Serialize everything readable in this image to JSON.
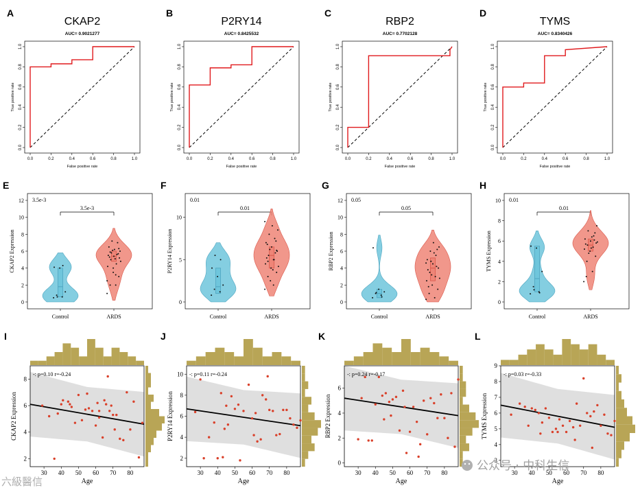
{
  "figure": {
    "panels": {
      "roc": [
        {
          "letter": "A",
          "title": "CKAP2",
          "auc": "AUC= 0.9021277"
        },
        {
          "letter": "B",
          "title": "P2RY14",
          "auc": "AUC= 0.8425532"
        },
        {
          "letter": "C",
          "title": "RBP2",
          "auc": "AUC= 0.7702128"
        },
        {
          "letter": "D",
          "title": "TYMS",
          "auc": "AUC= 0.8340426"
        }
      ],
      "violin": [
        {
          "letter": "E",
          "gene": "CKAP2",
          "p": "3.5e-3",
          "ylabel": "CKAP2 Expression"
        },
        {
          "letter": "F",
          "gene": "P2RY14",
          "p": "0.01",
          "ylabel": "P2RY14 Expression"
        },
        {
          "letter": "G",
          "gene": "RBP2",
          "p": "0.05",
          "ylabel": "RBP2 Expression"
        },
        {
          "letter": "H",
          "gene": "TYMS",
          "p": "0.01",
          "ylabel": "TYMS Expression"
        }
      ],
      "scatter": [
        {
          "letter": "I",
          "gene": "CKAP2",
          "stat": "-: p=0.10 r=-0.24",
          "ylabel": "CKAP2 Expression"
        },
        {
          "letter": "J",
          "gene": "P2RY14",
          "stat": "-: p=0.11 r=-0.24",
          "ylabel": "P2RY14 Expression"
        },
        {
          "letter": "K",
          "gene": "RBP2",
          "stat": "-: p=0.24 r=-0.17",
          "ylabel": "RBP2 Expression"
        },
        {
          "letter": "L",
          "gene": "TYMS",
          "stat": "-: p=0.03 r=-0.33",
          "ylabel": "TYMS Expression"
        }
      ]
    },
    "roc_axis": {
      "xlabel": "False positive rate",
      "ylabel": "True positive rate",
      "ticks": [
        "0.0",
        "0.2",
        "0.4",
        "0.6",
        "0.8",
        "1.0"
      ]
    },
    "violin_axis": {
      "groups": [
        "Control",
        "ARDS"
      ]
    },
    "scatter_axis": {
      "xlabel": "Age",
      "xticks": [
        "30",
        "40",
        "50",
        "60",
        "70",
        "80"
      ]
    },
    "watermark": {
      "left": "六級醫信",
      "right": "公众号 · 中科生信"
    },
    "colors": {
      "roc": "#e0191c",
      "control": "#6fc6dc",
      "ards": "#ee8577",
      "point": "#d9402a",
      "hist": "#b8a556",
      "band": "#dcdcdc"
    }
  },
  "chart_data": [
    {
      "type": "line",
      "title": "CKAP2",
      "subtitle": "AUC= 0.9021277",
      "xlabel": "False positive rate",
      "ylabel": "True positive rate",
      "xlim": [
        0,
        1
      ],
      "ylim": [
        0,
        1
      ],
      "x": [
        0,
        0,
        0,
        0.2,
        0.2,
        0.4,
        0.4,
        0.6,
        0.6,
        0.8,
        1
      ],
      "y": [
        0,
        0.8,
        0.8,
        0.8,
        0.83,
        0.83,
        0.87,
        0.87,
        1,
        1,
        1
      ]
    },
    {
      "type": "line",
      "title": "P2RY14",
      "subtitle": "AUC= 0.8425532",
      "xlabel": "False positive rate",
      "ylabel": "True positive rate",
      "xlim": [
        0,
        1
      ],
      "ylim": [
        0,
        1
      ],
      "x": [
        0,
        0,
        0.2,
        0.2,
        0.4,
        0.4,
        0.6,
        0.6,
        1
      ],
      "y": [
        0,
        0.62,
        0.62,
        0.79,
        0.79,
        0.82,
        0.82,
        1,
        1
      ]
    },
    {
      "type": "line",
      "title": "RBP2",
      "subtitle": "AUC= 0.7702128",
      "xlabel": "False positive rate",
      "ylabel": "True positive rate",
      "xlim": [
        0,
        1
      ],
      "ylim": [
        0,
        1
      ],
      "x": [
        0,
        0,
        0.2,
        0.2,
        0.98,
        0.98,
        1
      ],
      "y": [
        0,
        0.2,
        0.2,
        0.91,
        0.91,
        0.97,
        1
      ]
    },
    {
      "type": "line",
      "title": "TYMS",
      "subtitle": "AUC= 0.8340426",
      "xlabel": "False positive rate",
      "ylabel": "True positive rate",
      "xlim": [
        0,
        1
      ],
      "ylim": [
        0,
        1
      ],
      "x": [
        0,
        0,
        0.2,
        0.2,
        0.4,
        0.4,
        0.6,
        0.6,
        1
      ],
      "y": [
        0,
        0.6,
        0.6,
        0.64,
        0.64,
        0.91,
        0.91,
        0.97,
        1
      ]
    },
    {
      "type": "violin",
      "title": "CKAP2 Expression",
      "p": "3.5e-3",
      "categories": [
        "Control",
        "ARDS"
      ],
      "ylim": [
        0,
        12
      ],
      "yticks": [
        0,
        2,
        4,
        6,
        8,
        10,
        12
      ],
      "control": {
        "median": 1.8,
        "q1": 0.6,
        "q3": 4.0,
        "points": [
          0.5,
          0.6,
          0.8,
          1.2,
          4.0,
          4.1,
          4.3,
          0.6
        ]
      },
      "ards": {
        "median": 5.4,
        "q1": 4.8,
        "q3": 6.0,
        "points": [
          1.0,
          2.0,
          2.0,
          3.0,
          3.5,
          4.2,
          4.5,
          5.0,
          5.2,
          5.4,
          5.5,
          5.6,
          5.8,
          6.0,
          6.2,
          6.5,
          7.0,
          7.2,
          4.8,
          5.1,
          5.3,
          5.7,
          6.1,
          2.5,
          3.2,
          5.9,
          6.3,
          4.0
        ]
      }
    },
    {
      "type": "violin",
      "title": "P2RY14 Expression",
      "p": "0.01",
      "categories": [
        "Control",
        "ARDS"
      ],
      "ylim": [
        0,
        12
      ],
      "yticks": [
        0,
        5,
        10
      ],
      "control": {
        "median": 1.8,
        "q1": 1.0,
        "q3": 4.0,
        "points": [
          0.8,
          1.2,
          1.5,
          2.0,
          3.0,
          4.0,
          5.0,
          5.5
        ]
      },
      "ards": {
        "median": 5.5,
        "q1": 4.0,
        "q3": 6.5,
        "points": [
          1.5,
          2.0,
          3.0,
          3.5,
          4.0,
          4.5,
          5.0,
          5.5,
          6.0,
          6.5,
          7.0,
          7.5,
          8.0,
          8.5,
          9.0,
          5.2,
          5.8,
          6.2,
          4.2,
          3.8,
          6.8,
          7.2,
          2.5,
          9.5,
          5.0,
          4.8,
          6.1
        ]
      }
    },
    {
      "type": "violin",
      "title": "RBP2 Expression",
      "p": "0.05",
      "categories": [
        "Control",
        "ARDS"
      ],
      "ylim": [
        0,
        12
      ],
      "yticks": [
        0,
        2,
        4,
        6,
        8,
        10,
        12
      ],
      "control": {
        "median": 1.0,
        "q1": 0.5,
        "q3": 1.5,
        "points": [
          0.5,
          0.8,
          1.0,
          1.2,
          1.5,
          6.4,
          0.6,
          1.1
        ]
      },
      "ards": {
        "median": 4.0,
        "q1": 2.5,
        "q3": 5.2,
        "points": [
          0.3,
          0.5,
          1.0,
          1.5,
          2.0,
          2.5,
          3.0,
          3.5,
          4.0,
          4.5,
          5.0,
          5.5,
          6.0,
          6.5,
          7.0,
          3.8,
          4.2,
          4.8,
          2.8,
          5.8,
          1.8,
          6.2,
          3.2,
          4.6
        ]
      }
    },
    {
      "type": "violin",
      "title": "TYMS Expression",
      "p": "0.01",
      "categories": [
        "Control",
        "ARDS"
      ],
      "ylim": [
        0,
        10
      ],
      "yticks": [
        0,
        2,
        4,
        6,
        8,
        10
      ],
      "control": {
        "median": 2.3,
        "q1": 1.0,
        "q3": 5.5,
        "points": [
          0.8,
          1.0,
          1.5,
          3.0,
          5.3,
          5.5,
          0.9,
          1.2
        ]
      },
      "ards": {
        "median": 5.6,
        "q1": 5.0,
        "q3": 6.2,
        "points": [
          2.0,
          3.0,
          4.0,
          4.5,
          5.0,
          5.2,
          5.4,
          5.6,
          5.8,
          6.0,
          6.2,
          6.5,
          7.0,
          7.5,
          5.3,
          5.7,
          6.1,
          4.8,
          5.9,
          6.4,
          2.5,
          6.8
        ]
      }
    },
    {
      "type": "scatter",
      "title": "CKAP2 Expression",
      "stat": "-: p=0.10 r=-0.24",
      "xlabel": "Age",
      "xlim": [
        22,
        88
      ],
      "ylim": [
        1.4,
        9.0
      ],
      "yticks": [
        2,
        4,
        6,
        8
      ],
      "x": [
        36,
        38,
        40,
        41,
        44,
        45,
        46,
        48,
        50,
        52,
        54,
        55,
        56,
        58,
        60,
        61,
        62,
        62,
        64,
        65,
        66,
        67,
        68,
        69,
        70,
        71,
        72,
        74,
        76,
        78,
        80,
        82,
        85,
        87,
        29,
        33
      ],
      "y": [
        2.0,
        5.4,
        6.1,
        6.4,
        6.3,
        6.1,
        5.9,
        4.7,
        6.8,
        4.9,
        5.7,
        6.9,
        5.8,
        5.6,
        4.5,
        6.2,
        5.1,
        5.6,
        3.6,
        6.4,
        6.1,
        8.2,
        5.6,
        6.0,
        5.3,
        4.2,
        5.3,
        3.5,
        3.4,
        7.0,
        4.2,
        6.3,
        2.1,
        4.7,
        6.0,
        5.2
      ],
      "fit": {
        "x": [
          22,
          88
        ],
        "y": [
          6.1,
          4.6
        ]
      },
      "hist_x": [
        1,
        1,
        2,
        3,
        5,
        4,
        2,
        6,
        4,
        2,
        4,
        3,
        2,
        1
      ],
      "hist_y": [
        1,
        2,
        2,
        1,
        3,
        2,
        5,
        7,
        6,
        4,
        3,
        2,
        1,
        1
      ]
    },
    {
      "type": "scatter",
      "title": "P2RY14 Expression",
      "stat": "-: p=0.11 r=-0.24",
      "xlabel": "Age",
      "xlim": [
        22,
        88
      ],
      "ylim": [
        1.2,
        10.8
      ],
      "yticks": [
        2,
        4,
        6,
        8,
        10
      ],
      "x": [
        27,
        30,
        32,
        35,
        38,
        40,
        42,
        44,
        45,
        46,
        48,
        50,
        52,
        55,
        58,
        60,
        62,
        63,
        65,
        66,
        68,
        70,
        72,
        74,
        76,
        78,
        80,
        82,
        84,
        86,
        88,
        43,
        53,
        61,
        69
      ],
      "y": [
        6.4,
        9.5,
        2.0,
        4.0,
        5.4,
        2.0,
        8.2,
        4.8,
        7.0,
        5.2,
        7.9,
        6.7,
        7.1,
        6.5,
        9.0,
        5.8,
        6.3,
        3.6,
        3.8,
        8.0,
        7.6,
        6.6,
        6.5,
        4.2,
        4.3,
        6.6,
        6.6,
        5.8,
        5.2,
        4.9,
        5.6,
        2.1,
        1.8,
        4.2,
        9.8
      ],
      "fit": {
        "x": [
          22,
          88
        ],
        "y": [
          6.7,
          5.1
        ]
      },
      "hist_x": [
        1,
        2,
        3,
        4,
        3,
        2,
        6,
        4,
        2,
        3,
        2,
        1
      ],
      "hist_y": [
        1,
        1,
        2,
        1,
        3,
        2,
        4,
        6,
        5,
        3,
        4,
        2,
        1
      ]
    },
    {
      "type": "scatter",
      "title": "RBP2 Expression",
      "stat": "-: p=0.24 r=-0.17",
      "xlabel": "Age",
      "xlim": [
        22,
        88
      ],
      "ylim": [
        -0.3,
        7.8
      ],
      "yticks": [
        0,
        2,
        4,
        6
      ],
      "x": [
        32,
        34,
        36,
        38,
        40,
        42,
        44,
        45,
        46,
        48,
        50,
        52,
        54,
        56,
        58,
        60,
        62,
        64,
        66,
        68,
        70,
        72,
        74,
        76,
        78,
        80,
        82,
        84,
        86,
        88,
        30,
        49,
        57,
        65
      ],
      "y": [
        5.2,
        6.9,
        1.8,
        1.8,
        4.7,
        6.9,
        5.4,
        3.5,
        5.6,
        4.9,
        5.1,
        5.3,
        2.6,
        5.8,
        0.8,
        2.5,
        4.5,
        3.3,
        1.5,
        5.0,
        2.3,
        5.2,
        4.8,
        3.6,
        5.5,
        3.6,
        2.0,
        5.6,
        1.3,
        6.7,
        1.9,
        3.8,
        4.5,
        0.5
      ],
      "fit": {
        "x": [
          22,
          88
        ],
        "y": [
          5.2,
          3.8
        ]
      },
      "hist_x": [
        1,
        2,
        3,
        5,
        4,
        3,
        6,
        3,
        4,
        3,
        2,
        1
      ],
      "hist_y": [
        1,
        1,
        2,
        2,
        1,
        3,
        5,
        6,
        4,
        2,
        3,
        1,
        1
      ]
    },
    {
      "type": "scatter",
      "title": "TYMS Expression",
      "stat": "-: p=0.03 r=-0.33",
      "xlabel": "Age",
      "xlim": [
        22,
        88
      ],
      "ylim": [
        2.6,
        9.0
      ],
      "yticks": [
        3,
        4,
        5,
        6,
        7,
        8,
        9
      ],
      "x": [
        28,
        33,
        36,
        38,
        40,
        42,
        44,
        46,
        48,
        50,
        52,
        54,
        56,
        58,
        60,
        62,
        64,
        66,
        68,
        70,
        72,
        74,
        76,
        78,
        80,
        82,
        84,
        86,
        88,
        45,
        55,
        65,
        75
      ],
      "y": [
        5.9,
        6.6,
        6.4,
        5.2,
        6.3,
        6.2,
        6.0,
        5.4,
        6.3,
        5.7,
        4.8,
        5.0,
        5.6,
        5.2,
        4.8,
        5.5,
        5.1,
        6.6,
        5.2,
        8.2,
        6.0,
        5.8,
        6.1,
        6.5,
        5.2,
        5.9,
        4.7,
        4.6,
        5.5,
        4.7,
        4.8,
        4.3,
        3.8
      ],
      "fit": {
        "x": [
          22,
          88
        ],
        "y": [
          6.5,
          5.1
        ]
      },
      "hist_x": [
        1,
        1,
        2,
        3,
        4,
        3,
        2,
        5,
        4,
        3,
        4,
        2,
        1
      ],
      "hist_y": [
        1,
        2,
        1,
        2,
        3,
        4,
        6,
        7,
        5,
        3,
        2,
        1
      ]
    }
  ]
}
